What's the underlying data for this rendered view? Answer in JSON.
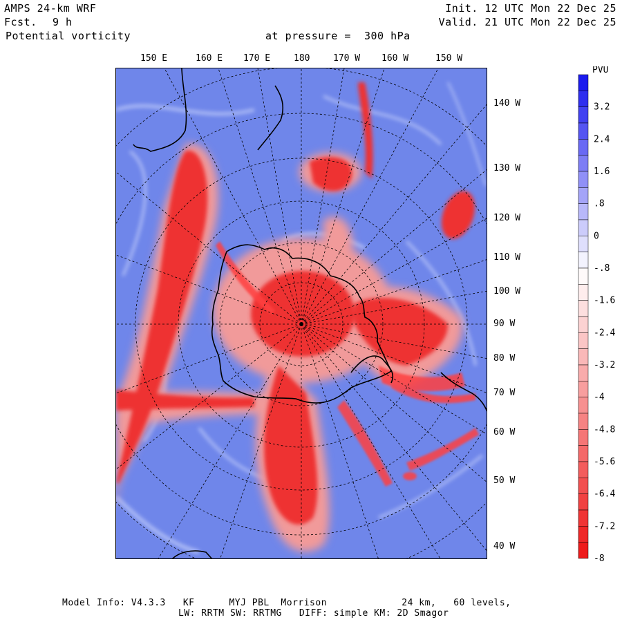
{
  "header": {
    "model": "AMPS 24-km WRF",
    "forecast_label": "Fcst.",
    "forecast_value": "9 h",
    "field": "Potential vorticity",
    "level": "at pressure =  300 hPa",
    "init": "Init. 12 UTC Mon 22 Dec 25",
    "valid": "Valid. 21 UTC Mon 22 Dec 25"
  },
  "map": {
    "top_lon_labels": [
      "150 E",
      "160 E",
      "170 E",
      "180",
      "170 W",
      "160 W",
      "150 W"
    ],
    "right_lon_labels": [
      "140 W",
      "130 W",
      "120 W",
      "110 W",
      "100 W",
      "90 W",
      "80 W",
      "70 W",
      "60 W",
      "50 W",
      "40 W"
    ]
  },
  "colorbar": {
    "unit": "PVU",
    "tick_labels": [
      "3.2",
      "2.4",
      "1.6",
      ".8",
      "0",
      "-.8",
      "-1.6",
      "-2.4",
      "-3.2",
      "-4",
      "-4.8",
      "-5.6",
      "-6.4",
      "-7.2",
      "-8"
    ],
    "colors": {
      "high": "#1a1aee",
      "zero": "#ffffff",
      "low": "#ee1a1a"
    }
  },
  "footer": {
    "line1": "Model Info: V4.3.3   KF      MYJ PBL  Morrison             24 km,   60 levels,",
    "line2": "LW: RRTM SW: RRTMG   DIFF: simple KM: 2D Smagor"
  }
}
